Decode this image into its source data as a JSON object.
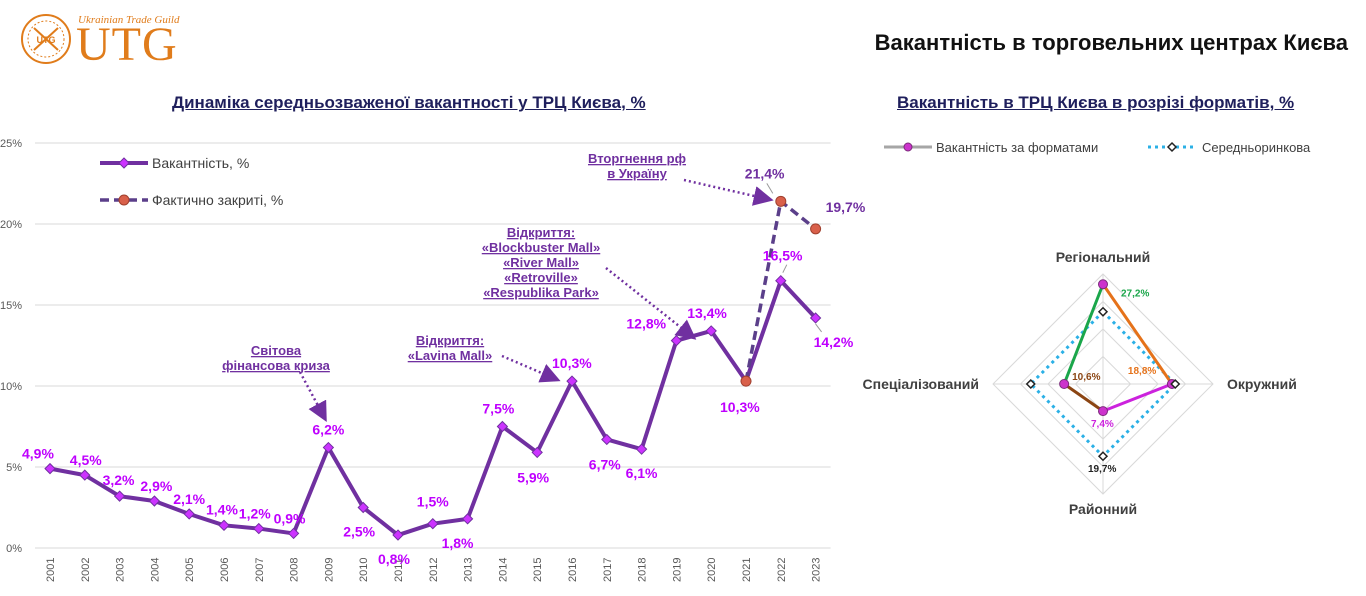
{
  "header": {
    "logo_guild": "Ukrainian Trade Guild",
    "logo_text": "UTG",
    "logo_seal_text": "UTG",
    "main_title": "Вакантність в торговельних центрах Києва"
  },
  "colors": {
    "purple_line": "#7030a0",
    "marker_purple": "#cc33ff",
    "label_magenta": "#bf00ff",
    "closed_marker": "#d9604a",
    "annotation": "#7030a0",
    "brand_orange": "#e07c1b",
    "radar_green": "#1aa64a",
    "radar_orange": "#e5721a",
    "radar_brown": "#8b4513",
    "radar_magenta": "#cc22dd",
    "radar_avg": "#2bb0e6"
  },
  "chart_data": [
    {
      "type": "line",
      "title": "Динаміка середньозваженої вакантності у ТРЦ Києва, %",
      "categories": [
        "2001",
        "2002",
        "2003",
        "2004",
        "2005",
        "2006",
        "2007",
        "2008",
        "2009",
        "2010",
        "2011",
        "2012",
        "2013",
        "2014",
        "2015",
        "2016",
        "2017",
        "2018",
        "2019",
        "2020",
        "2021",
        "2022",
        "2023"
      ],
      "ylim": [
        0,
        25
      ],
      "yticks": [
        "0%",
        "5%",
        "10%",
        "15%",
        "20%",
        "25%"
      ],
      "grid": true,
      "series": [
        {
          "name": "Вакантність, %",
          "values": [
            4.9,
            4.5,
            3.2,
            2.9,
            2.1,
            1.4,
            1.2,
            0.9,
            6.2,
            2.5,
            0.8,
            1.5,
            1.8,
            7.5,
            5.9,
            10.3,
            6.7,
            6.1,
            12.8,
            13.4,
            10.3,
            16.5,
            14.2
          ],
          "labels": [
            "4,9%",
            "4,5%",
            "3,2%",
            "2,9%",
            "2,1%",
            "1,4%",
            "1,2%",
            "0,9%",
            "6,2%",
            "2,5%",
            "0,8%",
            "1,5%",
            "1,8%",
            "7,5%",
            "5,9%",
            "10,3%",
            "6,7%",
            "6,1%",
            "12,8%",
            "13,4%",
            "10,3%",
            "16,5%",
            "14,2%"
          ]
        },
        {
          "name": "Фактично закриті, %",
          "x": [
            "2021",
            "2022",
            "2023"
          ],
          "values": [
            10.3,
            21.4,
            19.7
          ],
          "labels": [
            "",
            "21,4%",
            "19,7%"
          ]
        }
      ],
      "annotations": [
        {
          "year": "2009",
          "lines": [
            "Світова",
            "фінансова криза"
          ]
        },
        {
          "year": "2016",
          "lines": [
            "Відкриття:",
            "«Lavina Mall»"
          ]
        },
        {
          "year": "2019",
          "lines": [
            "Відкриття:",
            "«Blockbuster Mall»",
            "«River Mall»",
            "«Retroville»",
            "«Respublika Park»"
          ]
        },
        {
          "year": "2022",
          "lines": [
            "Вторгнення рф",
            "в Україну"
          ]
        }
      ],
      "legend_position": "top-left"
    },
    {
      "type": "radar",
      "title": "Вакантність в ТРЦ Києва в розрізі форматів, %",
      "axes": [
        "Регіональний",
        "Окружний",
        "Районний",
        "Спеціалізований"
      ],
      "rmax": 30,
      "series": [
        {
          "name": "Вакантність за форматами",
          "values": [
            27.2,
            18.8,
            7.4,
            10.6
          ],
          "labels": [
            "27,2%",
            "18,8%",
            "7,4%",
            "10,6%"
          ]
        },
        {
          "name": "Середньоринкова",
          "values": [
            19.7,
            19.7,
            19.7,
            19.7
          ],
          "labels": [
            "",
            "",
            "19,7%",
            ""
          ]
        }
      ],
      "legend_position": "top"
    }
  ]
}
